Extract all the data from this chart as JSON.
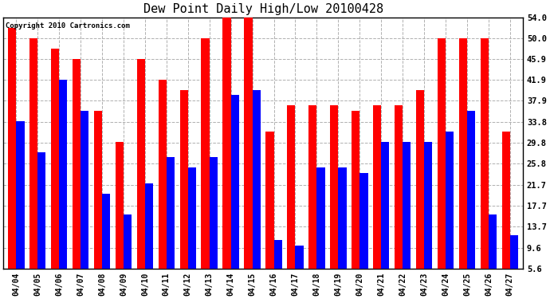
{
  "title": "Dew Point Daily High/Low 20100428",
  "copyright": "Copyright 2010 Cartronics.com",
  "dates": [
    "04/04",
    "04/05",
    "04/06",
    "04/07",
    "04/08",
    "04/09",
    "04/10",
    "04/11",
    "04/12",
    "04/13",
    "04/14",
    "04/15",
    "04/16",
    "04/17",
    "04/18",
    "04/19",
    "04/20",
    "04/21",
    "04/22",
    "04/23",
    "04/24",
    "04/25",
    "04/26",
    "04/27"
  ],
  "highs": [
    52,
    50,
    48,
    46,
    36,
    30,
    46,
    42,
    40,
    50,
    54,
    54,
    32,
    37,
    37,
    37,
    36,
    37,
    37,
    40,
    50,
    50,
    50,
    32
  ],
  "lows": [
    34,
    28,
    42,
    36,
    20,
    16,
    22,
    27,
    25,
    27,
    39,
    40,
    11,
    10,
    25,
    25,
    24,
    30,
    30,
    30,
    32,
    36,
    16,
    12
  ],
  "ylim": [
    5.6,
    54.0
  ],
  "yticks": [
    5.6,
    9.6,
    13.7,
    17.7,
    21.7,
    25.8,
    29.8,
    33.8,
    37.9,
    41.9,
    45.9,
    50.0,
    54.0
  ],
  "high_color": "#ff0000",
  "low_color": "#0000ff",
  "bg_color": "#ffffff",
  "grid_color": "#b0b0b0",
  "bar_width": 0.38,
  "figwidth": 6.9,
  "figheight": 3.75,
  "dpi": 100
}
